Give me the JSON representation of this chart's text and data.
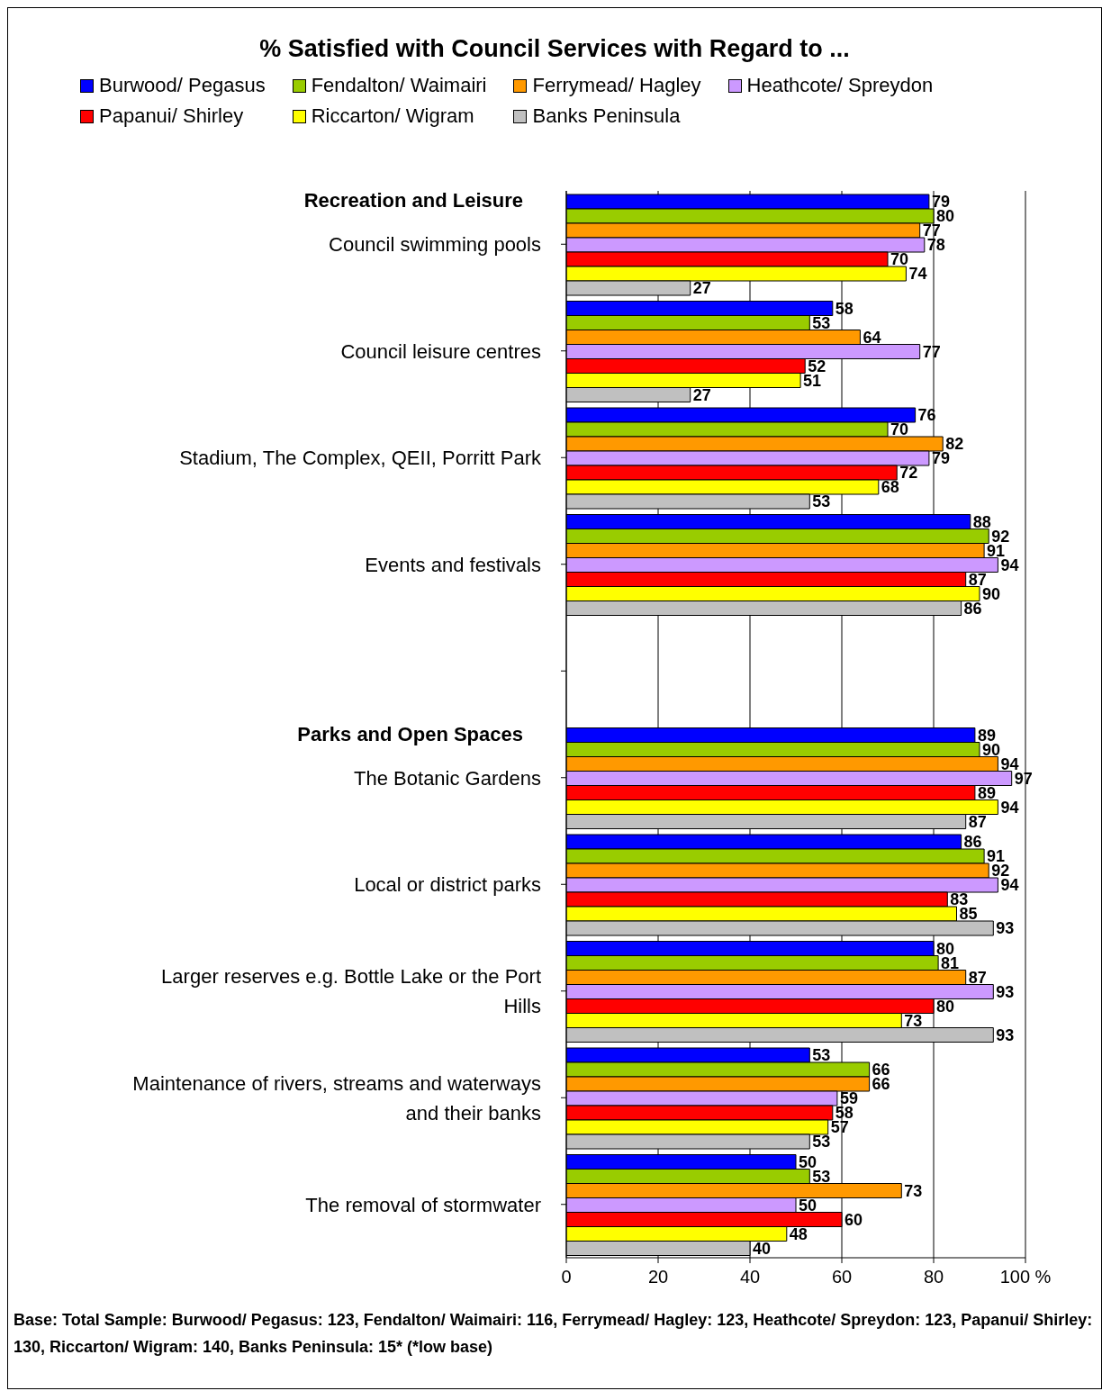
{
  "chart_data": {
    "type": "bar",
    "orientation": "horizontal",
    "title": "% Satisfied with Council Services with Regard to ...",
    "categories": [
      "Council swimming pools",
      "Council leisure centres",
      "Stadium, The Complex, QEII, Porritt Park",
      "Events and festivals",
      null,
      "The Botanic Gardens",
      "Local or district parks",
      "Larger reserves e.g. Bottle Lake or the Port Hills",
      "Maintenance of rivers, streams and waterways and their banks",
      "The removal of stormwater"
    ],
    "series": [
      {
        "name": "Burwood/ Pegasus",
        "color": "#0000ff",
        "values": [
          79,
          58,
          76,
          88,
          null,
          89,
          86,
          80,
          53,
          50
        ]
      },
      {
        "name": "Fendalton/ Waimairi",
        "color": "#99cc00",
        "values": [
          80,
          53,
          70,
          92,
          null,
          90,
          91,
          81,
          66,
          53
        ]
      },
      {
        "name": "Ferrymead/ Hagley",
        "color": "#ff9900",
        "values": [
          77,
          64,
          82,
          91,
          null,
          94,
          92,
          87,
          66,
          73
        ]
      },
      {
        "name": "Heathcote/ Spreydon",
        "color": "#cc99ff",
        "values": [
          78,
          77,
          79,
          94,
          null,
          97,
          94,
          93,
          59,
          50
        ]
      },
      {
        "name": "Papanui/ Shirley",
        "color": "#ff0000",
        "values": [
          70,
          52,
          72,
          87,
          null,
          89,
          83,
          80,
          58,
          60
        ]
      },
      {
        "name": "Riccarton/ Wigram",
        "color": "#ffff00",
        "values": [
          74,
          51,
          68,
          90,
          null,
          94,
          85,
          73,
          57,
          48
        ]
      },
      {
        "name": "Banks Peninsula",
        "color": "#c0c0c0",
        "values": [
          27,
          27,
          53,
          86,
          null,
          87,
          93,
          93,
          53,
          40
        ]
      }
    ],
    "xlim": [
      0,
      100
    ],
    "xticks": [
      0,
      20,
      40,
      60,
      80,
      {
        "value": 100,
        "label": "100 %"
      }
    ],
    "grid": "x",
    "legend": "top",
    "data_labels": true,
    "annotations": [
      "Recreation and Leisure",
      "Parks and Open Spaces",
      "Base: Total Sample: Burwood/ Pegasus: 123, Fendalton/ Waimairi: 116, Ferrymead/ Hagley: 123, Heathcote/ Spreydon: 123, Papanui/ Shirley: 130, Riccarton/ Wigram: 140, Banks Peninsula: 15* (*low base)"
    ]
  }
}
